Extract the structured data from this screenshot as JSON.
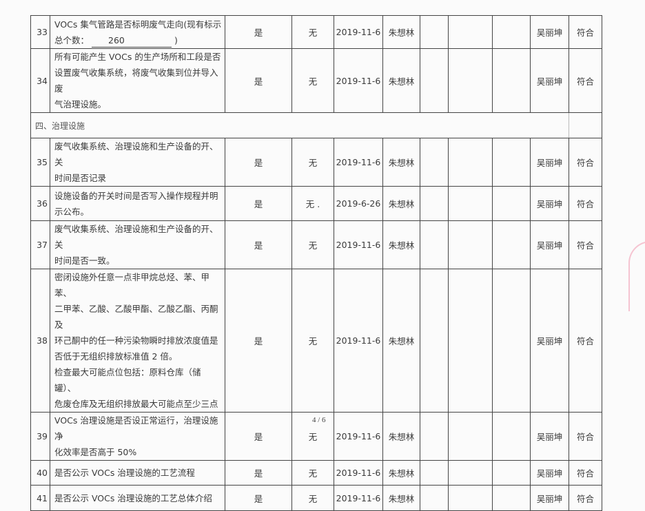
{
  "section_heading": "四、治理设施",
  "rows_before": [
    {
      "no": "33",
      "desc_lines": [
        "VOCs 集气管路是否标明废气走向(现有标示",
        "总个数："
      ],
      "fill_value": "260",
      "fill_suffix": ")",
      "answer": "是",
      "issue": "无",
      "date": "2019-11-6",
      "inspector": "朱想林",
      "reviewer": "吴丽坤",
      "result": "符合"
    },
    {
      "no": "34",
      "desc_lines": [
        "所有可能产生 VOCs 的生产场所和工段是否",
        "设置废气收集系统，将废气收集到位并导入废",
        "气治理设施。"
      ],
      "answer": "是",
      "issue": "无",
      "date": "2019-11-6",
      "inspector": "朱想林",
      "reviewer": "吴丽坤",
      "result": "符合"
    }
  ],
  "rows_after": [
    {
      "no": "35",
      "desc_lines": [
        "废气收集系统、治理设施和生产设备的开、关",
        "时间是否记录"
      ],
      "answer": "是",
      "issue": "无",
      "date": "2019-11-6",
      "inspector": "朱想林",
      "reviewer": "吴丽坤",
      "result": "符合"
    },
    {
      "no": "36",
      "desc_lines": [
        "设施设备的开关时间是否写入操作规程并明",
        "示公布。"
      ],
      "answer": "是",
      "issue": "无 .",
      "date": "2019-6-26",
      "inspector": "朱想林",
      "reviewer": "吴丽坤",
      "result": "符合"
    },
    {
      "no": "37",
      "desc_lines": [
        "废气收集系统、治理设施和生产设备的开、关",
        "时间是否一致。"
      ],
      "answer": "是",
      "issue": "无",
      "date": "2019-11-6",
      "inspector": "朱想林",
      "reviewer": "吴丽坤",
      "result": "符合"
    },
    {
      "no": "38",
      "desc_lines": [
        "密闭设施外任意一点非甲烷总烃、苯、甲苯、",
        "二甲苯、乙酸、乙酸甲酯、乙酸乙酯、丙酮及",
        "环己酮中的任一种污染物瞬时排放浓度值是",
        "否低于无组织排放标准值 2 倍。",
        "检查最大可能点位包括：原料仓库（储罐）、",
        "危废仓库及无组织排放最大可能点至少三点"
      ],
      "answer": "是",
      "issue": "无",
      "date": "2019-11-6",
      "inspector": "朱想林",
      "reviewer": "吴丽坤",
      "result": "符合"
    },
    {
      "no": "39",
      "desc_lines": [
        "VOCs 治理设施是否设正常运行，治理设施净",
        "化效率是否高于 50%"
      ],
      "answer": "是",
      "issue": "无",
      "date": "2019-11-6",
      "inspector": "朱想林",
      "reviewer": "吴丽坤",
      "result": "符合"
    },
    {
      "no": "40",
      "desc_lines": [
        "是否公示 VOCs 治理设施的工艺流程"
      ],
      "answer": "是",
      "issue": "无",
      "date": "2019-11-6",
      "inspector": "朱想林",
      "reviewer": "吴丽坤",
      "result": "符合"
    },
    {
      "no": "41",
      "desc_lines": [
        "是否公示 VOCs 治理设施的工艺总体介绍"
      ],
      "answer": "是",
      "issue": "无",
      "date": "2019-11-6",
      "inspector": "朱想林",
      "reviewer": "吴丽坤",
      "result": "符合"
    }
  ],
  "page_number": "4 / 6",
  "stamp_color": "#f2a0b6"
}
